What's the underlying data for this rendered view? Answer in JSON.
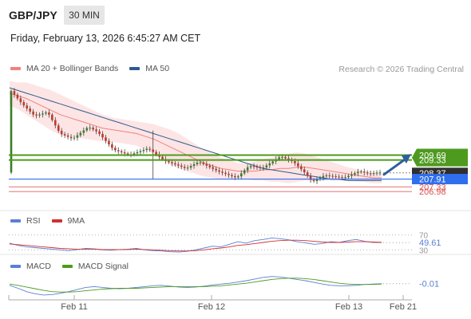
{
  "header": {
    "symbol": "GBP/JPY",
    "timeframe": "30 MIN",
    "datetime": "Friday, February 13, 2026 6:45:27 AM CET"
  },
  "legend": {
    "ma20_label": "MA 20 + Bollinger Bands",
    "ma50_label": "MA 50",
    "research": "Research © 2026 Trading Central"
  },
  "rsi_legend": {
    "rsi_label": "RSI",
    "ma_label": "9MA"
  },
  "macd_legend": {
    "macd_label": "MACD",
    "signal_label": "MACD Signal"
  },
  "colors": {
    "ma20": "#f08080",
    "ma50": "#2e5a8e",
    "bollinger_fill": "#fde0e0",
    "resistance": "#4e9a1e",
    "current": "#2f2f2f",
    "pivot": "#2f6fed",
    "support": "#e06060",
    "rsi": "#5b7fd6",
    "rsi_ma": "#d03030",
    "macd": "#5b7fd6",
    "macd_signal": "#4e9a1e"
  },
  "chart_data": [
    {
      "type": "candlestick",
      "price_labels": {
        "resistance_2": "209.69",
        "resistance_1": "209.33",
        "current": "208.37",
        "pivot": "207.91",
        "support_1": "207.33",
        "support_2": "206.98"
      },
      "levels": {
        "resistance_2": 209.69,
        "resistance_1": 209.33,
        "current": 208.37,
        "pivot": 207.91,
        "support_1": 207.33,
        "support_2": 206.98
      },
      "x_ticks": [
        "Feb 11",
        "Feb 12",
        "Feb 13",
        "Feb 21"
      ],
      "series": [
        {
          "name": "MA 20 + Bollinger Bands",
          "values": [
            214.3,
            214.1,
            213.9,
            213.6,
            213.3,
            213.0,
            212.7,
            212.5,
            212.3,
            212.1,
            211.9,
            211.7,
            211.6,
            211.5,
            211.4,
            211.3,
            211.1,
            210.9,
            210.6,
            210.3,
            210.0,
            209.7,
            209.4,
            209.1,
            208.9,
            208.7,
            208.6,
            208.5,
            208.5,
            208.5,
            208.6,
            208.6,
            208.7,
            208.7,
            208.8,
            208.8,
            208.7,
            208.6,
            208.5,
            208.4,
            208.3,
            208.2,
            208.1,
            208.0,
            208.0
          ]
        },
        {
          "name": "MA 50",
          "values": [
            214.7,
            214.5,
            214.3,
            214.1,
            213.9,
            213.7,
            213.5,
            213.3,
            213.1,
            212.9,
            212.7,
            212.5,
            212.3,
            212.1,
            211.9,
            211.7,
            211.5,
            211.3,
            211.1,
            210.9,
            210.7,
            210.5,
            210.3,
            210.1,
            209.9,
            209.7,
            209.5,
            209.3,
            209.1,
            208.9,
            208.7,
            208.6,
            208.5,
            208.4,
            208.3,
            208.2,
            208.1,
            208.0,
            207.9,
            207.9,
            207.8,
            207.8,
            207.8,
            207.8,
            207.8
          ]
        }
      ]
    },
    {
      "type": "line",
      "title": "RSI",
      "reference_labels": [
        "70",
        "30"
      ],
      "reference_values": [
        70,
        30
      ],
      "value_label": "49.61",
      "series": [
        {
          "name": "RSI",
          "values": [
            48,
            42,
            38,
            36,
            34,
            32,
            30,
            28,
            31,
            34,
            33,
            30,
            29,
            31,
            32,
            34,
            30,
            28,
            27,
            25,
            24,
            26,
            30,
            35,
            40,
            38,
            45,
            52,
            48,
            55,
            58,
            62,
            60,
            57,
            52,
            49,
            45,
            47,
            52,
            50,
            55,
            58,
            53,
            50,
            49.61
          ]
        },
        {
          "name": "9MA",
          "values": [
            46,
            44,
            42,
            40,
            38,
            36,
            34,
            33,
            32,
            32,
            32,
            31,
            31,
            31,
            31,
            32,
            31,
            30,
            29,
            28,
            27,
            27,
            28,
            30,
            33,
            35,
            38,
            42,
            44,
            47,
            50,
            53,
            55,
            56,
            56,
            55,
            53,
            51,
            50,
            50,
            51,
            52,
            52,
            51,
            50.5
          ]
        }
      ]
    },
    {
      "type": "line",
      "title": "MACD",
      "value_label": "-0.01",
      "series": [
        {
          "name": "MACD",
          "values": [
            -0.05,
            -0.12,
            -0.2,
            -0.25,
            -0.28,
            -0.27,
            -0.24,
            -0.2,
            -0.15,
            -0.1,
            -0.08,
            -0.1,
            -0.12,
            -0.13,
            -0.12,
            -0.1,
            -0.08,
            -0.06,
            -0.05,
            -0.07,
            -0.09,
            -0.1,
            -0.09,
            -0.07,
            -0.04,
            -0.02,
            0.0,
            0.03,
            0.06,
            0.1,
            0.14,
            0.16,
            0.15,
            0.12,
            0.09,
            0.06,
            0.02,
            -0.02,
            -0.05,
            -0.06,
            -0.06,
            -0.05,
            -0.03,
            -0.02,
            -0.01
          ]
        },
        {
          "name": "MACD Signal",
          "values": [
            -0.02,
            -0.05,
            -0.09,
            -0.13,
            -0.17,
            -0.2,
            -0.21,
            -0.21,
            -0.2,
            -0.18,
            -0.16,
            -0.14,
            -0.13,
            -0.12,
            -0.12,
            -0.12,
            -0.11,
            -0.1,
            -0.09,
            -0.08,
            -0.08,
            -0.08,
            -0.08,
            -0.08,
            -0.07,
            -0.06,
            -0.04,
            -0.02,
            0.0,
            0.03,
            0.06,
            0.09,
            0.11,
            0.12,
            0.12,
            0.11,
            0.09,
            0.06,
            0.03,
            0.0,
            -0.02,
            -0.03,
            -0.03,
            -0.03,
            -0.02
          ]
        }
      ]
    }
  ]
}
